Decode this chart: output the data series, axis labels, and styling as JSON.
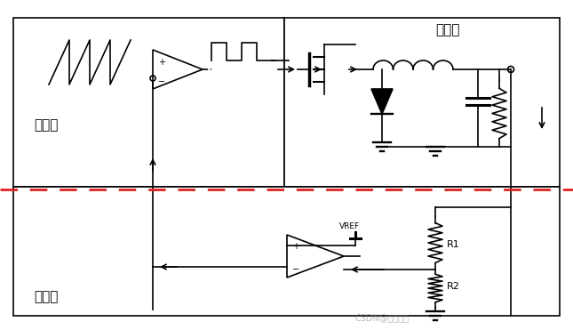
{
  "bg_color": "#ffffff",
  "border_color": "#000000",
  "dashed_line_color": "#e02020",
  "title_control": "控制级",
  "title_power": "功率级",
  "title_feedback": "反馈级",
  "label_r1": "R1",
  "label_r2": "R2",
  "label_vref": "VREF",
  "watermark": "CSDN@大话硬件",
  "fig_width": 6.45,
  "fig_height": 3.71,
  "dpi": 100
}
